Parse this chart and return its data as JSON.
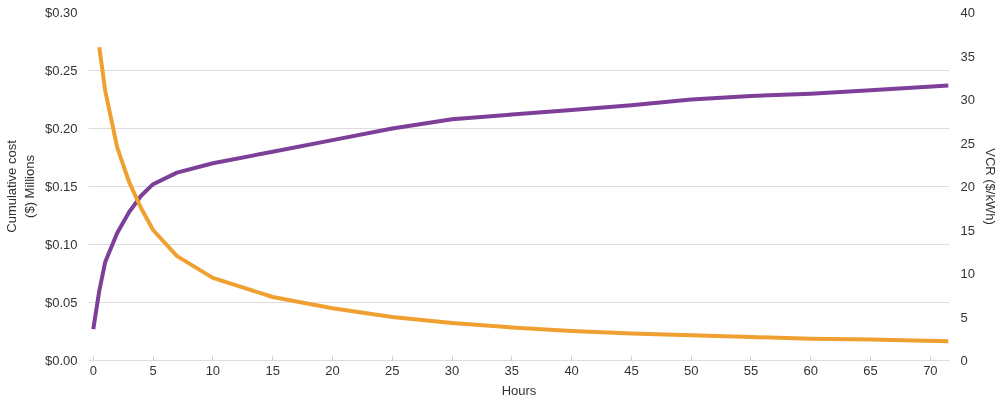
{
  "chart_data": {
    "type": "line",
    "xlabel": "Hours",
    "ylabel": "Cumulative cost\n($) Millions",
    "y2label": "VCR ($/kWh)",
    "xlim": [
      -0.4,
      71.6
    ],
    "xticks": [
      0,
      5,
      10,
      15,
      20,
      25,
      30,
      35,
      40,
      45,
      50,
      55,
      60,
      65,
      70
    ],
    "ylim": [
      0,
      0.3
    ],
    "yticks": [
      {
        "value": 0,
        "label": "$0.00"
      },
      {
        "value": 0.05,
        "label": "$0.05"
      },
      {
        "value": 0.1,
        "label": "$0.10"
      },
      {
        "value": 0.15,
        "label": "$0.15"
      },
      {
        "value": 0.2,
        "label": "$0.20"
      },
      {
        "value": 0.25,
        "label": "$0.25"
      },
      {
        "value": 0.3,
        "label": "$0.30"
      }
    ],
    "y2lim": [
      0,
      40
    ],
    "y2ticks": [
      0,
      5,
      10,
      15,
      20,
      25,
      30,
      35,
      40
    ],
    "grid": "y",
    "marker": "none",
    "line_style": "solid",
    "series": [
      {
        "color": "#7e3f98",
        "x": [
          0,
          0.5,
          1,
          2,
          3,
          4,
          5,
          7,
          10,
          15,
          20,
          25,
          30,
          35,
          40,
          45,
          50,
          55,
          60,
          65,
          71.5
        ],
        "values": [
          0.027,
          0.06,
          0.085,
          0.11,
          0.128,
          0.142,
          0.152,
          0.162,
          0.17,
          0.18,
          0.19,
          0.2,
          0.208,
          0.212,
          0.216,
          0.22,
          0.225,
          0.228,
          0.23,
          0.233,
          0.237
        ]
      },
      {
        "color": "#f0a030",
        "axis": "y2",
        "x": [
          0.5,
          1,
          2,
          3,
          4,
          5,
          7,
          10,
          15,
          20,
          25,
          30,
          35,
          40,
          45,
          50,
          55,
          60,
          65,
          71.5
        ],
        "values": [
          36,
          31,
          24.5,
          20.5,
          17.5,
          15,
          12,
          9.5,
          7.3,
          6,
          5,
          4.3,
          3.8,
          3.4,
          3.1,
          2.9,
          2.7,
          2.5,
          2.4,
          2.2
        ]
      }
    ]
  }
}
